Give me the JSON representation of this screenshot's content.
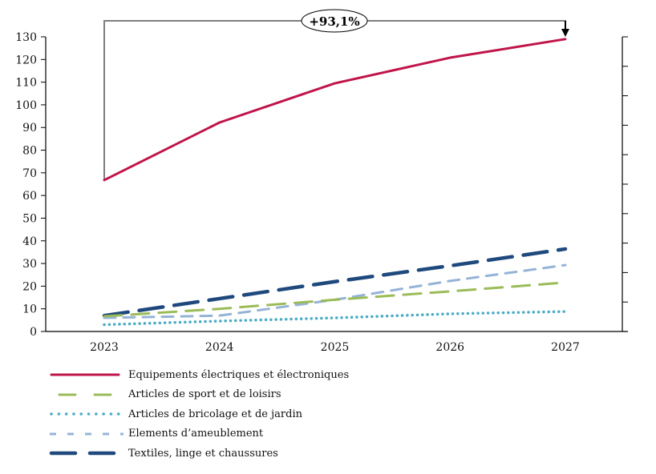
{
  "chart_data": {
    "type": "line",
    "title": "",
    "xlabel": "",
    "ylabel": "",
    "x": [
      "2023",
      "2024",
      "2025",
      "2026",
      "2027"
    ],
    "ylim": [
      0,
      130
    ],
    "y_ticks": [
      0,
      10,
      20,
      30,
      40,
      50,
      60,
      70,
      80,
      90,
      100,
      110,
      120,
      130
    ],
    "y_tick_labels": [
      "0",
      "10",
      "20",
      "30",
      "40",
      "50",
      "60",
      "70",
      "80",
      "90",
      "100",
      "110",
      "120",
      "130"
    ],
    "secondary_axis": "right, unlabeled ticks",
    "grid": false,
    "legend_position": "bottom",
    "annotation": {
      "text": "+93,1%",
      "from": "2023",
      "to": "2027",
      "series": "Equipements électriques et électroniques"
    },
    "series": [
      {
        "name": "Equipements électriques et électroniques",
        "color": "#C0144A",
        "style": "solid",
        "values": [
          66.8,
          92.2,
          109.5,
          120.8,
          129.0
        ]
      },
      {
        "name": "Articles de sport et de loisirs",
        "color": "#9BBB59",
        "style": "dash",
        "values": [
          6.7,
          10.0,
          14.0,
          17.7,
          21.6
        ]
      },
      {
        "name": "Articles de bricolage et de jardin",
        "color": "#4BACC6",
        "style": "dot",
        "values": [
          3.0,
          4.6,
          6.0,
          7.8,
          8.8
        ]
      },
      {
        "name": "Elements d’ameublement",
        "color": "#95B3D7",
        "style": "short-dash",
        "values": [
          6.0,
          7.0,
          14.0,
          22.3,
          29.3
        ]
      },
      {
        "name": "Textiles, linge et chaussures",
        "color": "#1F497D",
        "style": "long-dash",
        "values": [
          7.0,
          14.5,
          22.0,
          29.0,
          36.4
        ]
      }
    ]
  }
}
